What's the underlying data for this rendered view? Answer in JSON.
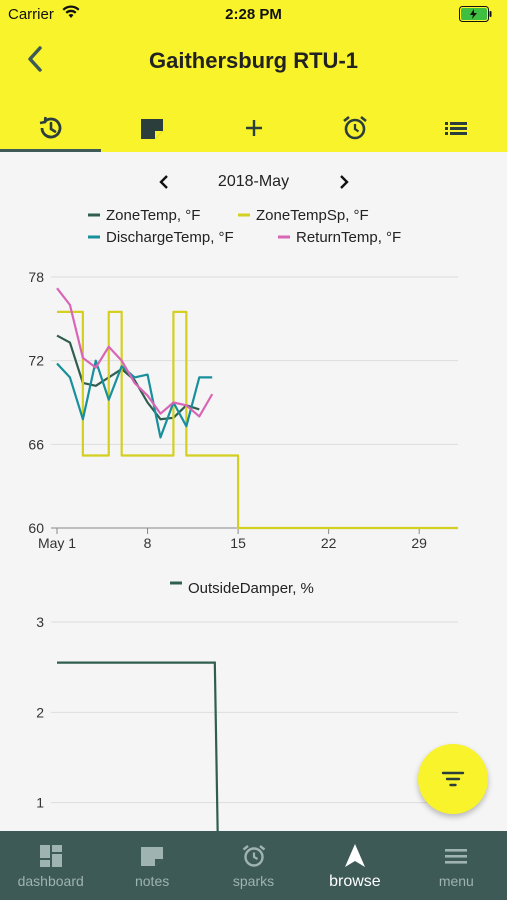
{
  "status_bar": {
    "carrier": "Carrier",
    "time": "2:28 PM"
  },
  "header": {
    "title": "Gaithersburg RTU-1"
  },
  "tabs": [
    {
      "icon": "history-icon",
      "active": true
    },
    {
      "icon": "note-icon",
      "active": false
    },
    {
      "icon": "plus-icon",
      "active": false
    },
    {
      "icon": "alarm-icon",
      "active": false
    },
    {
      "icon": "list-icon",
      "active": false
    }
  ],
  "month_nav": {
    "label": "2018-May"
  },
  "colors": {
    "accent": "#f8f32b",
    "nav_bg": "#3d5a57"
  },
  "chart_data": [
    {
      "type": "line",
      "ylim": [
        60,
        78
      ],
      "xlim": [
        1,
        31
      ],
      "y_ticks": [
        "78",
        "72",
        "66",
        "60"
      ],
      "x_ticks": [
        {
          "label": "May 1",
          "x": 1
        },
        {
          "label": "8",
          "x": 8
        },
        {
          "label": "15",
          "x": 15
        },
        {
          "label": "22",
          "x": 22
        },
        {
          "label": "29",
          "x": 29
        }
      ],
      "series": [
        {
          "name": "ZoneTemp, °F",
          "color": "#2f5e4f",
          "x": [
            1,
            2,
            3,
            4,
            5,
            6,
            7,
            8,
            9,
            10,
            11,
            12
          ],
          "y": [
            73.8,
            73.3,
            70.4,
            70.2,
            70.8,
            71.4,
            70.6,
            69.0,
            67.8,
            67.9,
            68.8,
            68.5
          ]
        },
        {
          "name": "ZoneTempSp, °F",
          "color": "#d4cf21",
          "step": true,
          "x": [
            1,
            2,
            3,
            4,
            5,
            6,
            7,
            8,
            9,
            10,
            11,
            12,
            13,
            14,
            15,
            31
          ],
          "y": [
            75.5,
            75.5,
            65.2,
            65.2,
            75.5,
            65.2,
            65.2,
            65.2,
            65.2,
            75.5,
            65.2,
            65.2,
            65.2,
            65.2,
            60,
            60
          ]
        },
        {
          "name": "DischargeTemp, °F",
          "color": "#17909c",
          "x": [
            1,
            2,
            3,
            4,
            5,
            6,
            7,
            8,
            9,
            10,
            11,
            12,
            13
          ],
          "y": [
            71.8,
            70.8,
            67.8,
            72.0,
            69.2,
            71.6,
            70.8,
            71.0,
            66.5,
            69.0,
            67.3,
            70.8,
            70.8
          ]
        },
        {
          "name": "ReturnTemp, °F",
          "color": "#d965b7",
          "x": [
            1,
            2,
            3,
            4,
            5,
            6,
            7,
            8,
            9,
            10,
            11,
            12,
            13
          ],
          "y": [
            77.2,
            76.0,
            72.2,
            71.5,
            73.0,
            72.0,
            70.4,
            69.5,
            68.2,
            69.0,
            68.8,
            68.0,
            69.6
          ]
        }
      ]
    },
    {
      "type": "line",
      "ylim": [
        0,
        3
      ],
      "y_ticks": [
        "3",
        "2",
        "1"
      ],
      "series": [
        {
          "name": "OutsideDamper, %",
          "color": "#2f5e4f",
          "x": [
            1,
            13.2,
            13.5
          ],
          "y": [
            2.55,
            2.55,
            0
          ]
        }
      ]
    }
  ],
  "bottom_nav": [
    {
      "label": "dashboard",
      "icon": "dashboard-icon",
      "active": false
    },
    {
      "label": "notes",
      "icon": "notes-icon",
      "active": false
    },
    {
      "label": "sparks",
      "icon": "sparks-icon",
      "active": false
    },
    {
      "label": "browse",
      "icon": "browse-icon",
      "active": true
    },
    {
      "label": "menu",
      "icon": "menu-icon",
      "active": false
    }
  ]
}
